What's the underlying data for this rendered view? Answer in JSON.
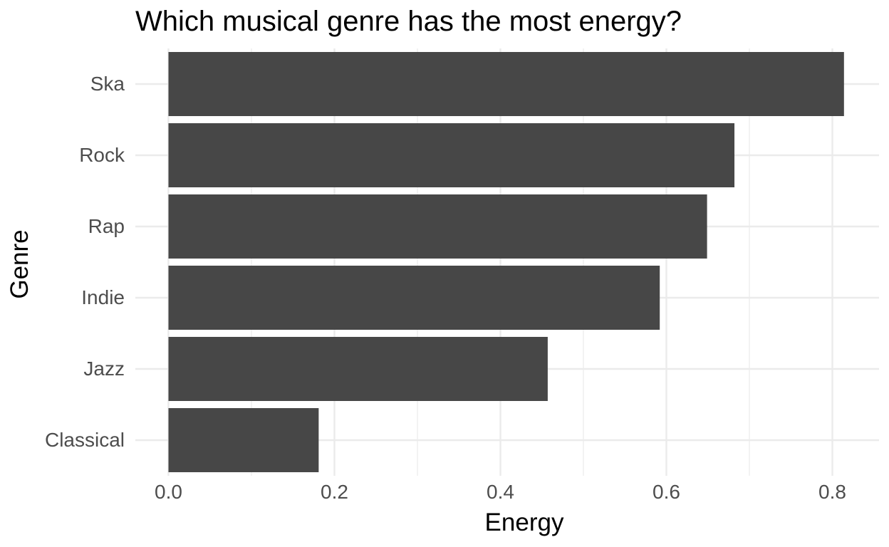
{
  "chart_data": {
    "type": "bar",
    "orientation": "horizontal",
    "title": "Which musical genre has the most energy?",
    "xlabel": "Energy",
    "ylabel": "Genre",
    "categories": [
      "Classical",
      "Jazz",
      "Indie",
      "Rap",
      "Rock",
      "Ska"
    ],
    "values": [
      0.181,
      0.457,
      0.592,
      0.649,
      0.682,
      0.814
    ],
    "xlim": [
      0,
      0.85
    ],
    "xticks": [
      "0.0",
      "0.2",
      "0.4",
      "0.6",
      "0.8"
    ],
    "grid": true,
    "legend": "none",
    "bar_color": "#474747",
    "grid_color": "#ebebeb",
    "text_color": "#4d4d4d"
  }
}
